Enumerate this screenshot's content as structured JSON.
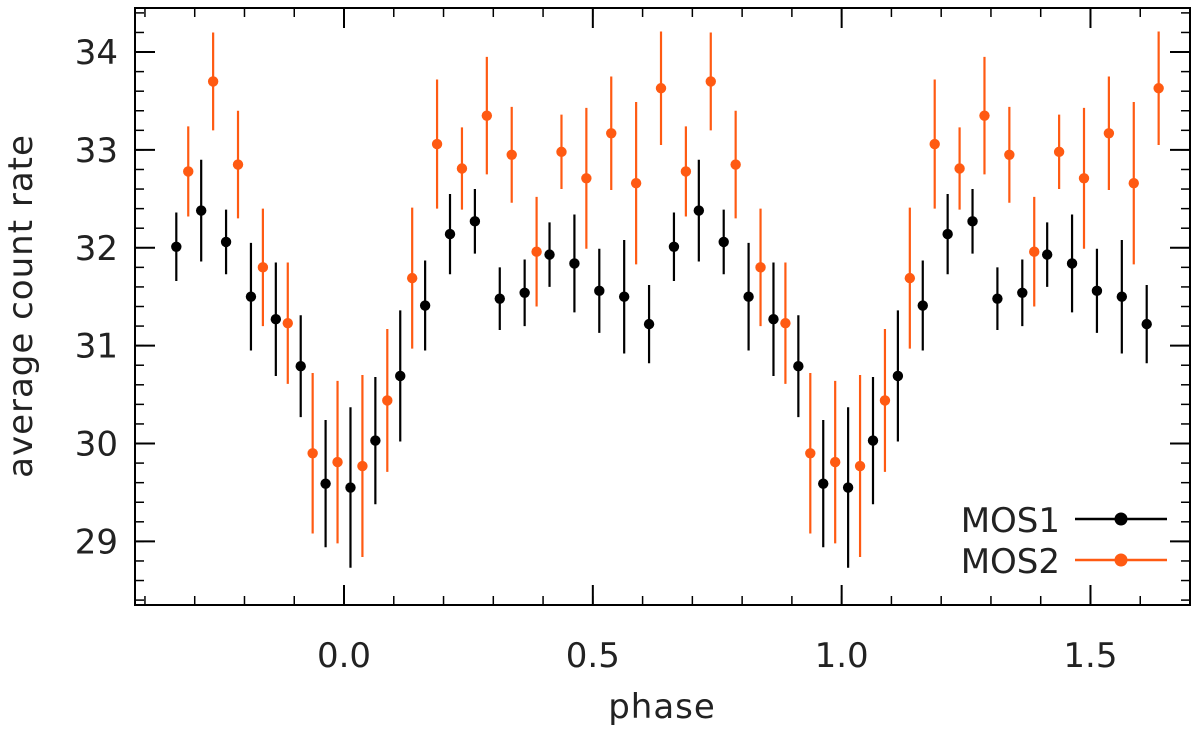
{
  "chart_data": {
    "type": "scatter",
    "title": "",
    "xlabel": "phase",
    "ylabel": "average count rate",
    "xlim": [
      -0.42,
      1.7
    ],
    "ylim": [
      28.35,
      34.45
    ],
    "xticks": [
      0.0,
      0.5,
      1.0,
      1.5
    ],
    "xtick_labels": [
      "0.0",
      "0.5",
      "1.0",
      "1.5"
    ],
    "yticks": [
      29,
      30,
      31,
      32,
      33,
      34
    ],
    "ytick_labels": [
      "29",
      "30",
      "31",
      "32",
      "33",
      "34"
    ],
    "x_minor_step": 0.1,
    "y_minor_step": 0.2,
    "grid": false,
    "legend": "bottom-right",
    "x": [
      -0.325,
      -0.275,
      -0.225,
      -0.175,
      -0.125,
      -0.075,
      -0.025,
      0.025,
      0.075,
      0.125,
      0.175,
      0.225,
      0.275,
      0.325,
      0.375,
      0.425,
      0.475,
      0.525,
      0.575,
      0.625,
      0.675,
      0.725,
      0.775,
      0.825,
      0.875,
      0.925,
      0.975,
      1.025,
      1.075,
      1.125,
      1.175,
      1.225,
      1.275,
      1.325,
      1.375,
      1.425,
      1.475,
      1.525,
      1.575,
      1.625
    ],
    "series": [
      {
        "name": "MOS1",
        "color": "#000000",
        "marker_offset": -0.012,
        "values": [
          32.01,
          32.38,
          32.06,
          31.5,
          31.27,
          30.79,
          29.59,
          29.55,
          30.03,
          30.69,
          31.41,
          32.14,
          32.27,
          31.48,
          31.54,
          31.93,
          31.84,
          31.56,
          31.5,
          31.22,
          32.01,
          32.38,
          32.06,
          31.5,
          31.27,
          30.79,
          29.59,
          29.55,
          30.03,
          30.69,
          31.41,
          32.14,
          32.27,
          31.48,
          31.54,
          31.93,
          31.84,
          31.56,
          31.5,
          31.22
        ],
        "errors": [
          0.35,
          0.52,
          0.33,
          0.55,
          0.58,
          0.52,
          0.65,
          0.82,
          0.65,
          0.67,
          0.46,
          0.41,
          0.33,
          0.32,
          0.34,
          0.33,
          0.5,
          0.43,
          0.58,
          0.4,
          0.35,
          0.52,
          0.33,
          0.55,
          0.58,
          0.52,
          0.65,
          0.82,
          0.65,
          0.67,
          0.46,
          0.41,
          0.33,
          0.32,
          0.34,
          0.33,
          0.5,
          0.43,
          0.58,
          0.4
        ]
      },
      {
        "name": "MOS2",
        "color": "#ff5a12",
        "marker_offset": 0.012,
        "values": [
          32.78,
          33.7,
          32.85,
          31.8,
          31.23,
          29.9,
          29.81,
          29.77,
          30.44,
          31.69,
          33.06,
          32.81,
          33.35,
          32.95,
          31.96,
          32.98,
          32.71,
          33.17,
          32.66,
          33.63,
          32.78,
          33.7,
          32.85,
          31.8,
          31.23,
          29.9,
          29.81,
          29.77,
          30.44,
          31.69,
          33.06,
          32.81,
          33.35,
          32.95,
          31.96,
          32.98,
          32.71,
          33.17,
          32.66,
          33.63
        ],
        "errors": [
          0.46,
          0.5,
          0.55,
          0.6,
          0.62,
          0.82,
          0.83,
          0.93,
          0.73,
          0.72,
          0.66,
          0.42,
          0.6,
          0.49,
          0.56,
          0.38,
          0.72,
          0.58,
          0.83,
          0.58,
          0.46,
          0.5,
          0.55,
          0.6,
          0.62,
          0.82,
          0.83,
          0.93,
          0.73,
          0.72,
          0.66,
          0.42,
          0.6,
          0.49,
          0.56,
          0.38,
          0.72,
          0.58,
          0.83,
          0.58
        ]
      }
    ]
  }
}
